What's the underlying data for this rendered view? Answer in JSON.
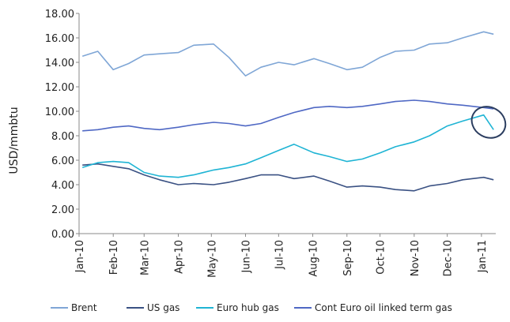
{
  "chart_data": {
    "type": "line",
    "title": "",
    "xlabel": "",
    "ylabel": "USD/mmbtu",
    "ylim": [
      0,
      18
    ],
    "yticks": [
      "0.00",
      "2.00",
      "4.00",
      "6.00",
      "8.00",
      "10.00",
      "12.00",
      "14.00",
      "16.00",
      "18.00"
    ],
    "x_tick_labels": [
      "Jan-10",
      "Feb-10",
      "Mar-10",
      "Apr-10",
      "May-10",
      "Jun-10",
      "Jul-10",
      "Aug-10",
      "Sep-10",
      "Oct-10",
      "Nov-10",
      "Dec-10",
      "Jan-11"
    ],
    "x": [
      "2010-01-04",
      "2010-01-18",
      "2010-02-01",
      "2010-02-15",
      "2010-03-01",
      "2010-03-15",
      "2010-04-01",
      "2010-04-15",
      "2010-05-03",
      "2010-05-17",
      "2010-06-01",
      "2010-06-15",
      "2010-07-01",
      "2010-07-15",
      "2010-08-02",
      "2010-08-16",
      "2010-09-01",
      "2010-09-15",
      "2010-10-01",
      "2010-10-15",
      "2010-11-01",
      "2010-11-15",
      "2010-12-01",
      "2010-12-15",
      "2011-01-03",
      "2011-01-12"
    ],
    "grid": false,
    "legend_position": "bottom",
    "series": [
      {
        "name": "Brent",
        "color": "#7fa6d6",
        "values": [
          14.5,
          14.9,
          13.4,
          13.9,
          14.6,
          14.7,
          14.8,
          15.4,
          15.5,
          14.4,
          12.9,
          13.6,
          14.0,
          13.8,
          14.3,
          13.9,
          13.4,
          13.6,
          14.4,
          14.9,
          15.0,
          15.5,
          15.6,
          16.0,
          16.5,
          16.3
        ]
      },
      {
        "name": "US gas",
        "color": "#3a5183",
        "values": [
          5.6,
          5.7,
          5.5,
          5.3,
          4.8,
          4.4,
          4.0,
          4.1,
          4.0,
          4.2,
          4.5,
          4.8,
          4.8,
          4.5,
          4.7,
          4.3,
          3.8,
          3.9,
          3.8,
          3.6,
          3.5,
          3.9,
          4.1,
          4.4,
          4.6,
          4.4
        ]
      },
      {
        "name": "Euro hub gas",
        "color": "#1fb4d4",
        "values": [
          5.4,
          5.8,
          5.9,
          5.8,
          5.0,
          4.7,
          4.6,
          4.8,
          5.2,
          5.4,
          5.7,
          6.2,
          6.8,
          7.3,
          6.6,
          6.3,
          5.9,
          6.1,
          6.6,
          7.1,
          7.5,
          8.0,
          8.8,
          9.2,
          9.7,
          8.5
        ]
      },
      {
        "name": "Cont Euro oil linked term gas",
        "color": "#4f68c4",
        "values": [
          8.4,
          8.5,
          8.7,
          8.8,
          8.6,
          8.5,
          8.7,
          8.9,
          9.1,
          9.0,
          8.8,
          9.0,
          9.5,
          9.9,
          10.3,
          10.4,
          10.3,
          10.4,
          10.6,
          10.8,
          10.9,
          10.8,
          10.6,
          10.5,
          10.3,
          10.2
        ]
      }
    ]
  },
  "annotation": {
    "shape": "ellipse",
    "target_series": "Euro hub gas",
    "color": "#2c3e60"
  }
}
